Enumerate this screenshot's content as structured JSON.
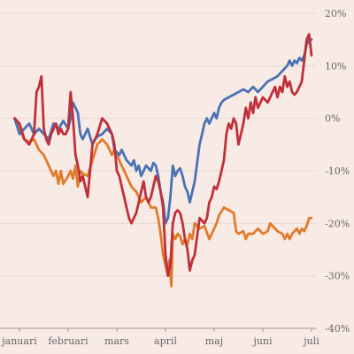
{
  "chart_data": {
    "type": "line",
    "title": "",
    "xlabel": "",
    "ylabel": "",
    "x_unit": "month (0 = start of januari)",
    "xlim": [
      0,
      6
    ],
    "ylim": [
      -40,
      20
    ],
    "x_ticks": [
      {
        "value": 0,
        "label": "januari"
      },
      {
        "value": 1,
        "label": "februari"
      },
      {
        "value": 2,
        "label": "mars"
      },
      {
        "value": 3,
        "label": "april"
      },
      {
        "value": 4,
        "label": "maj"
      },
      {
        "value": 5,
        "label": "juni"
      },
      {
        "value": 6,
        "label": "juli"
      }
    ],
    "y_ticks": [
      {
        "value": 20,
        "label": "20%"
      },
      {
        "value": 10,
        "label": "10%"
      },
      {
        "value": 0,
        "label": "0%"
      },
      {
        "value": -10,
        "label": "-10%"
      },
      {
        "value": -20,
        "label": "-20%"
      },
      {
        "value": -30,
        "label": "-30%"
      },
      {
        "value": -40,
        "label": "-40%"
      }
    ],
    "grid": true,
    "legend": "none",
    "series": [
      {
        "color": "#e07b2a",
        "points": [
          [
            -0.1,
            0
          ],
          [
            0.0,
            -2
          ],
          [
            0.1,
            -4
          ],
          [
            0.2,
            -4.5
          ],
          [
            0.3,
            -4
          ],
          [
            0.4,
            -6
          ],
          [
            0.5,
            -7
          ],
          [
            0.6,
            -9
          ],
          [
            0.7,
            -11
          ],
          [
            0.75,
            -10
          ],
          [
            0.8,
            -12.5
          ],
          [
            0.85,
            -10
          ],
          [
            0.9,
            -12.5
          ],
          [
            1.0,
            -11
          ],
          [
            1.05,
            -10
          ],
          [
            1.1,
            -11.5
          ],
          [
            1.15,
            -9
          ],
          [
            1.2,
            -13
          ],
          [
            1.25,
            -10
          ],
          [
            1.3,
            -10.5
          ],
          [
            1.4,
            -11
          ],
          [
            1.5,
            -8
          ],
          [
            1.6,
            -5
          ],
          [
            1.7,
            -4
          ],
          [
            1.8,
            -5
          ],
          [
            1.9,
            -7
          ],
          [
            1.95,
            -6
          ],
          [
            2.0,
            -7
          ],
          [
            2.1,
            -9
          ],
          [
            2.2,
            -11
          ],
          [
            2.3,
            -13
          ],
          [
            2.4,
            -14
          ],
          [
            2.5,
            -16
          ],
          [
            2.6,
            -15
          ],
          [
            2.7,
            -17
          ],
          [
            2.8,
            -17
          ],
          [
            2.85,
            -19
          ],
          [
            2.9,
            -22
          ],
          [
            2.95,
            -26
          ],
          [
            3.0,
            -28
          ],
          [
            3.05,
            -30
          ],
          [
            3.08,
            -27
          ],
          [
            3.12,
            -32
          ],
          [
            3.15,
            -22
          ],
          [
            3.2,
            -23
          ],
          [
            3.25,
            -22
          ],
          [
            3.3,
            -22.5
          ],
          [
            3.35,
            -24
          ],
          [
            3.4,
            -23
          ],
          [
            3.45,
            -24
          ],
          [
            3.5,
            -22
          ],
          [
            3.55,
            -23
          ],
          [
            3.6,
            -20
          ],
          [
            3.7,
            -21
          ],
          [
            3.8,
            -20.5
          ],
          [
            3.9,
            -23
          ],
          [
            4.0,
            -21
          ],
          [
            4.05,
            -20
          ],
          [
            4.1,
            -18.5
          ],
          [
            4.2,
            -17
          ],
          [
            4.3,
            -17.5
          ],
          [
            4.4,
            -18
          ],
          [
            4.45,
            -21.5
          ],
          [
            4.5,
            -22
          ],
          [
            4.6,
            -21.5
          ],
          [
            4.65,
            -23
          ],
          [
            4.7,
            -22
          ],
          [
            4.8,
            -22
          ],
          [
            4.9,
            -21
          ],
          [
            5.0,
            -22
          ],
          [
            5.1,
            -21.5
          ],
          [
            5.15,
            -20
          ],
          [
            5.2,
            -20.5
          ],
          [
            5.3,
            -21.5
          ],
          [
            5.4,
            -22
          ],
          [
            5.45,
            -23
          ],
          [
            5.5,
            -22
          ],
          [
            5.55,
            -23
          ],
          [
            5.6,
            -22
          ],
          [
            5.7,
            -21
          ],
          [
            5.75,
            -22
          ],
          [
            5.8,
            -21
          ],
          [
            5.85,
            -21.5
          ],
          [
            5.9,
            -20.5
          ],
          [
            5.95,
            -19
          ],
          [
            6.0,
            -19
          ]
        ]
      },
      {
        "color": "#4a72b5",
        "points": [
          [
            -0.1,
            0
          ],
          [
            0.0,
            -3
          ],
          [
            0.1,
            -2
          ],
          [
            0.2,
            -1
          ],
          [
            0.3,
            -3
          ],
          [
            0.4,
            -2
          ],
          [
            0.5,
            -3
          ],
          [
            0.6,
            -4
          ],
          [
            0.7,
            -1
          ],
          [
            0.8,
            -2
          ],
          [
            0.9,
            -0.5
          ],
          [
            1.0,
            -2
          ],
          [
            1.05,
            0
          ],
          [
            1.1,
            3
          ],
          [
            1.15,
            2
          ],
          [
            1.2,
            1
          ],
          [
            1.25,
            -3
          ],
          [
            1.3,
            -4
          ],
          [
            1.4,
            -2
          ],
          [
            1.5,
            -5
          ],
          [
            1.55,
            -4
          ],
          [
            1.6,
            -3.5
          ],
          [
            1.7,
            -3
          ],
          [
            1.8,
            -2
          ],
          [
            1.9,
            -3
          ],
          [
            1.95,
            -6
          ],
          [
            2.05,
            -7
          ],
          [
            2.1,
            -6
          ],
          [
            2.2,
            -8
          ],
          [
            2.3,
            -9
          ],
          [
            2.35,
            -8
          ],
          [
            2.4,
            -10
          ],
          [
            2.45,
            -9
          ],
          [
            2.5,
            -11
          ],
          [
            2.6,
            -9
          ],
          [
            2.7,
            -10
          ],
          [
            2.75,
            -8.5
          ],
          [
            2.8,
            -9
          ],
          [
            2.85,
            -11
          ],
          [
            2.9,
            -14
          ],
          [
            2.95,
            -16
          ],
          [
            3.0,
            -20
          ],
          [
            3.05,
            -19
          ],
          [
            3.1,
            -15
          ],
          [
            3.15,
            -9
          ],
          [
            3.2,
            -11
          ],
          [
            3.25,
            -10
          ],
          [
            3.3,
            -9.5
          ],
          [
            3.35,
            -11
          ],
          [
            3.4,
            -13
          ],
          [
            3.45,
            -14
          ],
          [
            3.5,
            -16
          ],
          [
            3.6,
            -12
          ],
          [
            3.7,
            -5
          ],
          [
            3.75,
            -3
          ],
          [
            3.8,
            -1
          ],
          [
            3.85,
            0
          ],
          [
            3.9,
            -1
          ],
          [
            4.0,
            1
          ],
          [
            4.05,
            0
          ],
          [
            4.1,
            2
          ],
          [
            4.15,
            3
          ],
          [
            4.2,
            3.5
          ],
          [
            4.3,
            4
          ],
          [
            4.4,
            4.5
          ],
          [
            4.5,
            5
          ],
          [
            4.6,
            5.5
          ],
          [
            4.7,
            5
          ],
          [
            4.8,
            6
          ],
          [
            4.9,
            5
          ],
          [
            5.0,
            6
          ],
          [
            5.1,
            7
          ],
          [
            5.2,
            7.5
          ],
          [
            5.3,
            8
          ],
          [
            5.4,
            9
          ],
          [
            5.5,
            10
          ],
          [
            5.55,
            11
          ],
          [
            5.6,
            10
          ],
          [
            5.65,
            11
          ],
          [
            5.7,
            10.5
          ],
          [
            5.75,
            11.5
          ],
          [
            5.8,
            11
          ],
          [
            5.85,
            12
          ],
          [
            5.9,
            14
          ],
          [
            5.95,
            15
          ],
          [
            6.0,
            15
          ]
        ]
      },
      {
        "color": "#c0303a",
        "points": [
          [
            -0.1,
            0
          ],
          [
            0.0,
            -1
          ],
          [
            0.1,
            -4
          ],
          [
            0.2,
            -5
          ],
          [
            0.3,
            -3
          ],
          [
            0.35,
            5
          ],
          [
            0.4,
            6
          ],
          [
            0.45,
            8
          ],
          [
            0.5,
            -2
          ],
          [
            0.55,
            -4
          ],
          [
            0.6,
            -5
          ],
          [
            0.65,
            -3
          ],
          [
            0.7,
            -2
          ],
          [
            0.75,
            -1
          ],
          [
            0.8,
            -3
          ],
          [
            0.85,
            -2
          ],
          [
            0.9,
            -3
          ],
          [
            0.95,
            -3
          ],
          [
            1.0,
            -2
          ],
          [
            1.05,
            5
          ],
          [
            1.1,
            0
          ],
          [
            1.15,
            -7
          ],
          [
            1.2,
            -9
          ],
          [
            1.25,
            -12
          ],
          [
            1.3,
            -11
          ],
          [
            1.35,
            -13
          ],
          [
            1.4,
            -15
          ],
          [
            1.45,
            -10
          ],
          [
            1.5,
            -5
          ],
          [
            1.55,
            -4
          ],
          [
            1.6,
            -3
          ],
          [
            1.7,
            0
          ],
          [
            1.8,
            -1
          ],
          [
            1.9,
            -3
          ],
          [
            1.95,
            -5
          ],
          [
            2.0,
            -10
          ],
          [
            2.05,
            -11
          ],
          [
            2.1,
            -13
          ],
          [
            2.15,
            -15
          ],
          [
            2.2,
            -17
          ],
          [
            2.25,
            -19
          ],
          [
            2.3,
            -20
          ],
          [
            2.35,
            -19
          ],
          [
            2.4,
            -18
          ],
          [
            2.45,
            -16
          ],
          [
            2.5,
            -14
          ],
          [
            2.55,
            -12
          ],
          [
            2.6,
            -15
          ],
          [
            2.65,
            -16
          ],
          [
            2.7,
            -15
          ],
          [
            2.75,
            -13
          ],
          [
            2.8,
            -11
          ],
          [
            2.85,
            -12
          ],
          [
            2.9,
            -14
          ],
          [
            2.95,
            -17
          ],
          [
            3.0,
            -26
          ],
          [
            3.05,
            -30
          ],
          [
            3.1,
            -28
          ],
          [
            3.15,
            -20
          ],
          [
            3.2,
            -18
          ],
          [
            3.25,
            -17.5
          ],
          [
            3.3,
            -18
          ],
          [
            3.35,
            -20
          ],
          [
            3.4,
            -23
          ],
          [
            3.45,
            -25
          ],
          [
            3.5,
            -29
          ],
          [
            3.55,
            -27
          ],
          [
            3.6,
            -26
          ],
          [
            3.7,
            -19
          ],
          [
            3.8,
            -20
          ],
          [
            3.85,
            -19
          ],
          [
            3.9,
            -16
          ],
          [
            3.95,
            -15
          ],
          [
            4.0,
            -13
          ],
          [
            4.05,
            -13.5
          ],
          [
            4.1,
            -12
          ],
          [
            4.15,
            -10
          ],
          [
            4.2,
            -8
          ],
          [
            4.25,
            -3
          ],
          [
            4.3,
            -1
          ],
          [
            4.35,
            -2
          ],
          [
            4.4,
            0
          ],
          [
            4.45,
            -1
          ],
          [
            4.5,
            -5
          ],
          [
            4.6,
            -1
          ],
          [
            4.65,
            2
          ],
          [
            4.7,
            0
          ],
          [
            4.75,
            3
          ],
          [
            4.8,
            1
          ],
          [
            4.85,
            4
          ],
          [
            4.9,
            2
          ],
          [
            5.0,
            4
          ],
          [
            5.1,
            3
          ],
          [
            5.2,
            5
          ],
          [
            5.25,
            6
          ],
          [
            5.3,
            4
          ],
          [
            5.35,
            6
          ],
          [
            5.4,
            5
          ],
          [
            5.45,
            8
          ],
          [
            5.5,
            6
          ],
          [
            5.55,
            7
          ],
          [
            5.6,
            5
          ],
          [
            5.65,
            4.5
          ],
          [
            5.7,
            5
          ],
          [
            5.75,
            6
          ],
          [
            5.8,
            7
          ],
          [
            5.85,
            11
          ],
          [
            5.9,
            15
          ],
          [
            5.95,
            16
          ],
          [
            6.0,
            12
          ]
        ]
      }
    ]
  }
}
